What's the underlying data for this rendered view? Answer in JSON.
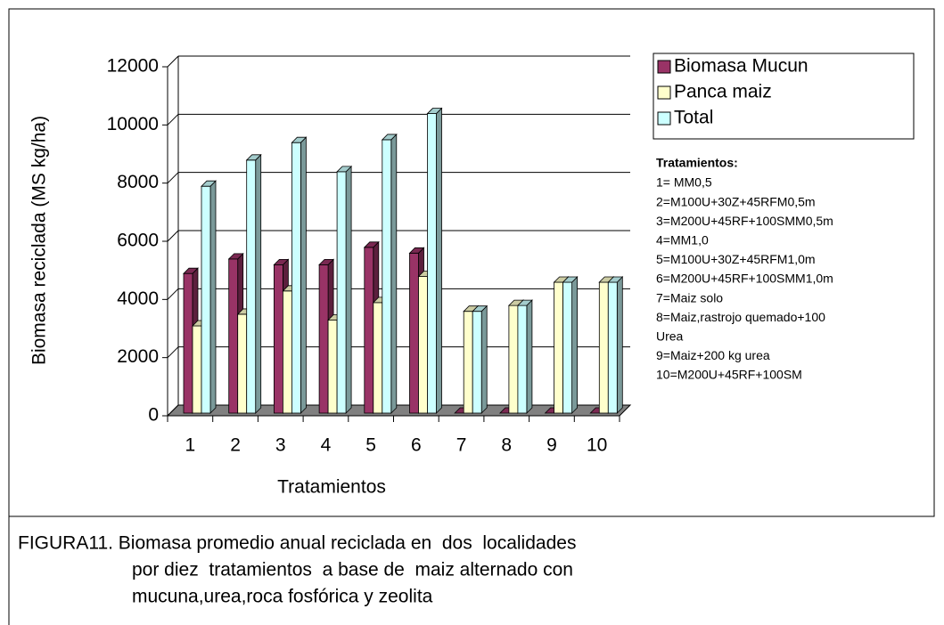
{
  "chart_data": {
    "type": "bar",
    "categories": [
      "1",
      "2",
      "3",
      "4",
      "5",
      "6",
      "7",
      "8",
      "9",
      "10"
    ],
    "series": [
      {
        "name": "Biomasa Mucun",
        "color": "#993366",
        "values": [
          4800,
          5300,
          5100,
          5100,
          5700,
          5500,
          0,
          0,
          0,
          0
        ]
      },
      {
        "name": "Panca maiz",
        "color": "#ffffcc",
        "values": [
          3000,
          3400,
          4200,
          3200,
          3800,
          4700,
          3500,
          3700,
          4500,
          4500
        ]
      },
      {
        "name": "Total",
        "color": "#ccffff",
        "values": [
          7800,
          8700,
          9300,
          8300,
          9400,
          10300,
          3500,
          3700,
          4500,
          4500
        ]
      }
    ],
    "ylim": [
      0,
      12000
    ],
    "yticks": [
      0,
      2000,
      4000,
      6000,
      8000,
      10000,
      12000
    ],
    "grid": true,
    "legend_position": "right",
    "x_label": "Tratamientos",
    "y_label": "Biomasa reciclada (MS kg/ha)",
    "treatments_title": "Tratamientos:",
    "treatments": [
      "1= MM0,5",
      "2=M100U+30Z+45RFM0,5m",
      "3=M200U+45RF+100SMM0,5m",
      "4=MM1,0",
      "5=M100U+30Z+45RFM1,0m",
      "6=M200U+45RF+100SMM1,0m",
      "7=Maiz solo",
      "8=Maiz,rastrojo quemado+100",
      "Urea",
      "9=Maiz+200 kg urea",
      "10=M200U+45RF+100SM"
    ],
    "caption": [
      "FIGURA11. Biomasa promedio anual reciclada en  dos  localidades",
      "por diez  tratamientos  a base de  maiz alternado con",
      "mucuna,urea,roca fosfórica y zeolita"
    ]
  }
}
